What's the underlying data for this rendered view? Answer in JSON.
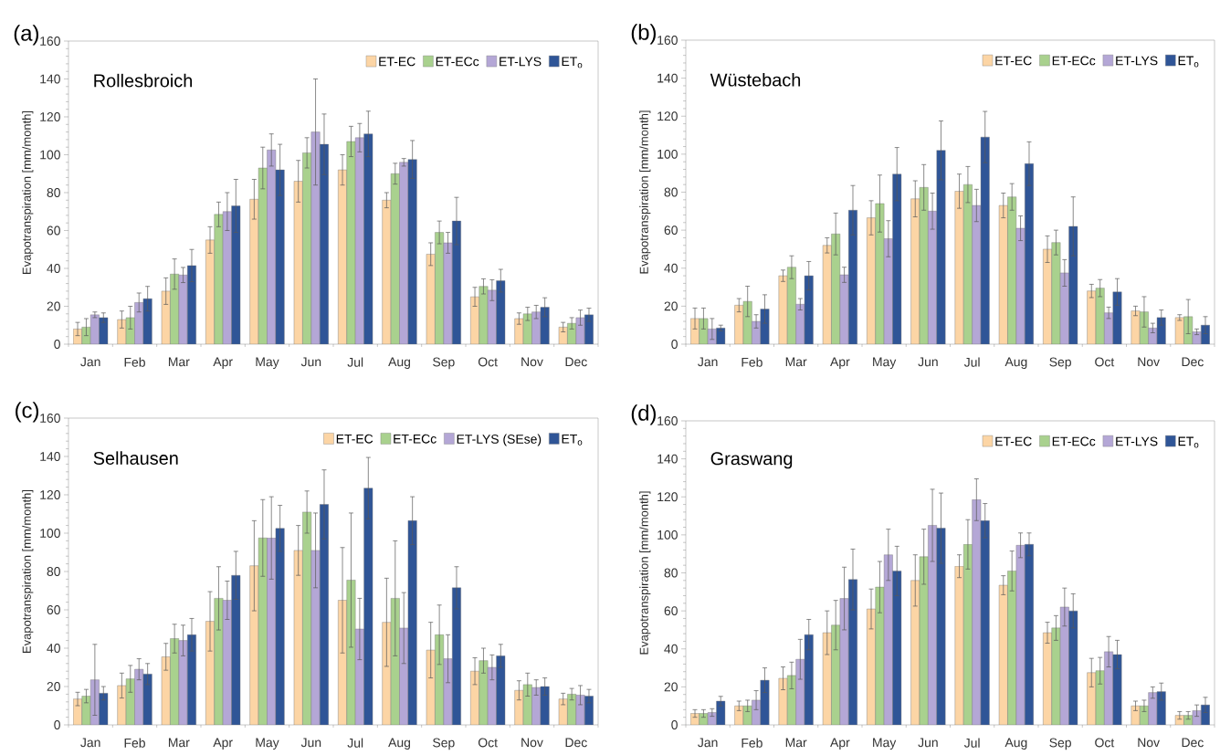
{
  "chart_data": [
    {
      "type": "bar",
      "title": "(a)",
      "annotations": [
        "Rollesbroich"
      ],
      "ylabel": "Evapotranspiration [mm/month]",
      "categories": [
        "Jan",
        "Feb",
        "Mar",
        "Apr",
        "May",
        "Jun",
        "Jul",
        "Aug",
        "Sep",
        "Oct",
        "Nov",
        "Dec"
      ],
      "ylim": [
        0,
        160
      ],
      "yticks": [
        0,
        20,
        40,
        60,
        80,
        100,
        120,
        140,
        160
      ],
      "legend": "top right",
      "series": [
        {
          "name": "ET-EC",
          "color": "#fcd5a5",
          "values": [
            8,
            13,
            28,
            55,
            76.5,
            86,
            92,
            76,
            47.5,
            25,
            13.5,
            9
          ],
          "errors": [
            3.5,
            4.5,
            7,
            7,
            10.5,
            11,
            8,
            4,
            6,
            5,
            3,
            2.5
          ]
        },
        {
          "name": "ET-ECc",
          "color": "#a9d18e",
          "values": [
            9,
            14,
            37,
            68.5,
            93,
            101,
            107,
            90,
            59,
            30.5,
            16,
            11
          ],
          "errors": [
            4.5,
            6,
            8,
            6.5,
            11,
            8,
            8,
            5.5,
            6,
            4,
            3.5,
            3
          ]
        },
        {
          "name": "ET-LYS",
          "color": "#b4a7d6",
          "values": [
            15.5,
            22,
            36.5,
            70,
            102.5,
            112,
            109,
            96,
            53.5,
            28.5,
            17,
            14
          ],
          "errors": [
            1.5,
            5,
            4,
            10,
            8.5,
            28,
            7.5,
            2,
            5.5,
            5.5,
            3.5,
            4
          ]
        },
        {
          "name": "ET$_{o}$",
          "color": "#2f5597",
          "values": [
            14,
            24,
            41.5,
            73,
            92,
            105.5,
            111,
            97.5,
            65,
            33.5,
            19.5,
            15.5
          ],
          "errors": [
            2.5,
            6.5,
            8.5,
            14,
            13.5,
            16,
            12,
            10,
            12.5,
            6,
            5,
            3.5
          ]
        }
      ]
    },
    {
      "type": "bar",
      "title": "(b)",
      "annotations": [
        "Wüstebach"
      ],
      "ylabel": "Evapotranspiration [mm/month]",
      "categories": [
        "Jan",
        "Feb",
        "Mar",
        "Apr",
        "May",
        "Jun",
        "Jul",
        "Aug",
        "Sep",
        "Oct",
        "Nov",
        "Dec"
      ],
      "ylim": [
        0,
        160
      ],
      "yticks": [
        0,
        20,
        40,
        60,
        80,
        100,
        120,
        140,
        160
      ],
      "legend": "top right",
      "series": [
        {
          "name": "ET-EC",
          "color": "#fcd5a5",
          "values": [
            13.5,
            20.5,
            36,
            52,
            66.5,
            76.5,
            80.5,
            73,
            50,
            28,
            17.5,
            14
          ],
          "errors": [
            5.5,
            3.5,
            3,
            4,
            9,
            9.5,
            9,
            6.5,
            7,
            3.5,
            2.5,
            1.5
          ]
        },
        {
          "name": "ET-ECc",
          "color": "#a9d18e",
          "values": [
            13.5,
            22.5,
            40.5,
            58,
            74,
            82.5,
            84,
            77.5,
            53.5,
            29.5,
            17,
            14.5
          ],
          "errors": [
            5.5,
            8,
            6,
            11,
            15,
            12,
            9.5,
            7,
            6.5,
            4.5,
            8,
            9
          ]
        },
        {
          "name": "ET-LYS",
          "color": "#b4a7d6",
          "values": [
            8,
            12,
            21,
            36.5,
            55.5,
            70,
            73,
            61,
            37.5,
            16.5,
            8.5,
            6.5
          ],
          "errors": [
            5.5,
            3.5,
            3,
            4,
            9.5,
            9.5,
            8.5,
            6.5,
            7,
            3,
            2.5,
            1.5
          ]
        },
        {
          "name": "ET$_{o}$",
          "color": "#2f5597",
          "values": [
            8.5,
            18.5,
            36,
            70.5,
            89.5,
            102,
            109,
            95,
            62,
            27.5,
            14,
            10
          ],
          "errors": [
            1.5,
            7.5,
            7.5,
            13,
            14,
            15.5,
            13.5,
            11.5,
            15.5,
            7,
            4,
            4.5
          ]
        }
      ]
    },
    {
      "type": "bar",
      "title": "(c)",
      "annotations": [
        "Selhausen"
      ],
      "ylabel": "Evapotranspiration [mm/month]",
      "categories": [
        "Jan",
        "Feb",
        "Mar",
        "Apr",
        "May",
        "Jun",
        "Jul",
        "Aug",
        "Sep",
        "Oct",
        "Nov",
        "Dec"
      ],
      "ylim": [
        0,
        160
      ],
      "yticks": [
        0,
        20,
        40,
        60,
        80,
        100,
        120,
        140,
        160
      ],
      "legend": "top right",
      "series": [
        {
          "name": "ET-EC",
          "color": "#fcd5a5",
          "values": [
            13.5,
            20.5,
            35.5,
            54,
            83,
            91,
            65,
            53.5,
            39,
            28,
            18,
            13.5
          ],
          "errors": [
            3.5,
            6.5,
            7,
            15.5,
            23.5,
            13,
            27.5,
            23,
            14.5,
            7,
            5,
            3
          ]
        },
        {
          "name": "ET-ECc",
          "color": "#a9d18e",
          "values": [
            15,
            24,
            45,
            66,
            97.5,
            111,
            75.5,
            66,
            47,
            33.5,
            21,
            16
          ],
          "errors": [
            3.5,
            7,
            7.5,
            16.5,
            20,
            11,
            35,
            30,
            15.5,
            6.5,
            6,
            3
          ]
        },
        {
          "name": "ET-LYS (SEse)",
          "color": "#b4a7d6",
          "values": [
            23.5,
            29,
            44,
            65,
            97.5,
            91,
            50,
            50.5,
            34.5,
            30,
            19.5,
            15.5
          ],
          "errors": [
            18.5,
            5.5,
            8,
            10,
            21.5,
            19.5,
            16,
            18.5,
            12.5,
            6.5,
            4,
            5
          ]
        },
        {
          "name": "ET$_{o}$",
          "color": "#2f5597",
          "values": [
            16.5,
            26.5,
            47,
            78,
            102.5,
            115,
            123.5,
            106.5,
            71.5,
            36,
            20,
            15
          ],
          "errors": [
            3.5,
            5.5,
            8.5,
            12.5,
            12,
            18,
            16,
            12.5,
            11,
            6,
            4.5,
            3.5
          ]
        }
      ]
    },
    {
      "type": "bar",
      "title": "(d)",
      "annotations": [
        "Graswang"
      ],
      "ylabel": "Evapotranspiration [mm/month]",
      "categories": [
        "Jan",
        "Feb",
        "Mar",
        "Apr",
        "May",
        "Jun",
        "Jul",
        "Aug",
        "Sep",
        "Oct",
        "Nov",
        "Dec"
      ],
      "ylim": [
        0,
        160
      ],
      "yticks": [
        0,
        20,
        40,
        60,
        80,
        100,
        120,
        140,
        160
      ],
      "legend": "top right",
      "series": [
        {
          "name": "ET-EC",
          "color": "#fcd5a5",
          "values": [
            6,
            10,
            24.5,
            48.5,
            61,
            76,
            83.5,
            73.5,
            48.5,
            27.5,
            10,
            5
          ],
          "errors": [
            2,
            2.5,
            6,
            11.5,
            10.5,
            13.5,
            6,
            5,
            5.5,
            7.5,
            2.5,
            2
          ]
        },
        {
          "name": "ET-ECc",
          "color": "#a9d18e",
          "values": [
            6,
            10,
            26,
            52.5,
            72.5,
            88.5,
            95,
            81,
            51,
            28.5,
            10,
            5
          ],
          "errors": [
            2,
            3,
            7,
            13,
            13.5,
            14.5,
            13,
            10.5,
            6.5,
            7,
            3,
            2
          ]
        },
        {
          "name": "ET-LYS",
          "color": "#b4a7d6",
          "values": [
            6.5,
            13,
            34.5,
            66.5,
            89.5,
            105,
            118.5,
            94.5,
            62,
            38.5,
            17,
            7.5
          ],
          "errors": [
            2,
            5,
            10.5,
            16.5,
            13.5,
            19,
            11,
            6.5,
            10,
            8,
            3,
            3
          ]
        },
        {
          "name": "ET$_{o}$",
          "color": "#2f5597",
          "values": [
            12.5,
            23.5,
            47.5,
            76.5,
            81,
            103.5,
            107.5,
            95,
            60,
            37,
            17.5,
            10.5
          ],
          "errors": [
            2.5,
            6.5,
            8,
            16,
            13,
            18.5,
            9,
            6,
            9,
            7.5,
            4.5,
            4
          ]
        }
      ]
    }
  ]
}
